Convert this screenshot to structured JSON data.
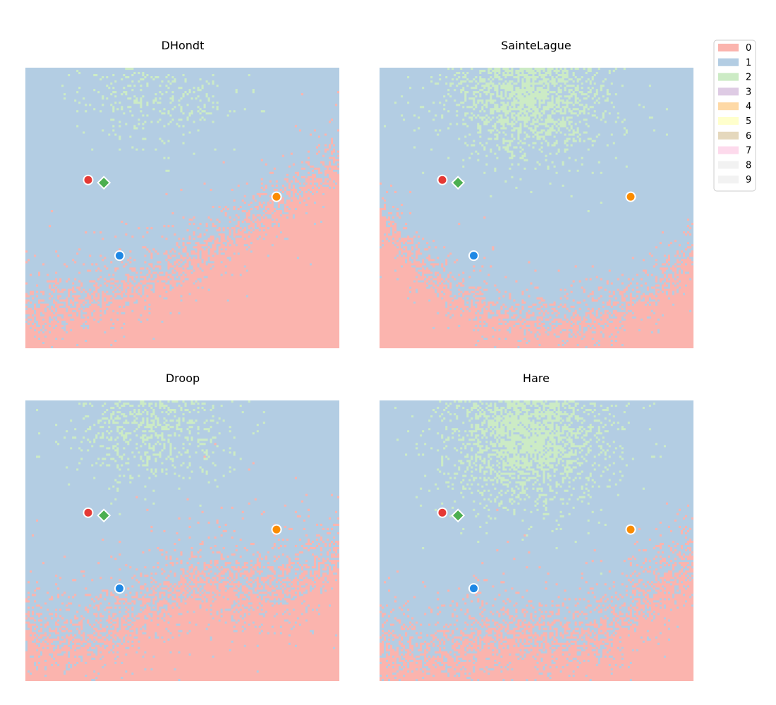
{
  "chart_data": {
    "type": "heatmap",
    "legend": {
      "placement": "top-right",
      "entries": [
        {
          "label": "0",
          "color": "#fbb4ae"
        },
        {
          "label": "1",
          "color": "#b3cde3"
        },
        {
          "label": "2",
          "color": "#ccebc5"
        },
        {
          "label": "3",
          "color": "#decbe4"
        },
        {
          "label": "4",
          "color": "#fed9a6"
        },
        {
          "label": "5",
          "color": "#ffffcc"
        },
        {
          "label": "6",
          "color": "#e5d8bd"
        },
        {
          "label": "7",
          "color": "#fddaec"
        },
        {
          "label": "8",
          "color": "#f2f2f2"
        },
        {
          "label": "9",
          "color": "#f2f2f2"
        }
      ]
    },
    "axes_visible": false,
    "grid": false,
    "markers": [
      {
        "shape": "circle",
        "color": "#e53935"
      },
      {
        "shape": "diamond",
        "color": "#4caf50"
      },
      {
        "shape": "circle",
        "color": "#fb8c00"
      },
      {
        "shape": "circle",
        "color": "#1e88e5"
      }
    ],
    "panels": [
      {
        "title": "DHondt",
        "dominant_regions": [
          {
            "label": "1",
            "area": "upper and middle"
          },
          {
            "label": "2",
            "area": "sparse scattered cells at top"
          },
          {
            "label": "0",
            "area": "bottom, rising along a curved boundary toward the right"
          }
        ]
      },
      {
        "title": "SainteLague",
        "dominant_regions": [
          {
            "label": "2",
            "area": "dense cloud at top-center"
          },
          {
            "label": "1",
            "area": "middle, most of the panel"
          },
          {
            "label": "0",
            "area": "bottom band and lower corners"
          }
        ]
      },
      {
        "title": "Droop",
        "dominant_regions": [
          {
            "label": "2",
            "area": "moderate cloud at top-left"
          },
          {
            "label": "1",
            "area": "middle"
          },
          {
            "label": "0",
            "area": "bottom band rising toward the right"
          }
        ]
      },
      {
        "title": "Hare",
        "dominant_regions": [
          {
            "label": "2",
            "area": "dense cloud at top-center"
          },
          {
            "label": "1",
            "area": "middle, most of the panel"
          },
          {
            "label": "0",
            "area": "bottom band and lower-right"
          }
        ]
      }
    ]
  }
}
